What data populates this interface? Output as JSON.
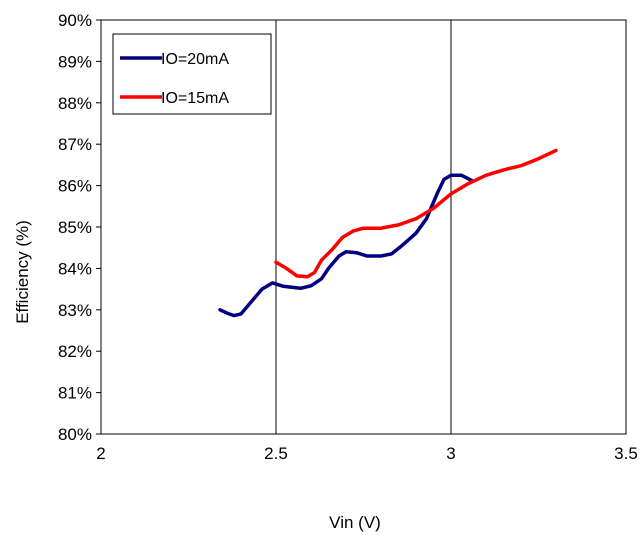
{
  "chart_data": {
    "type": "line",
    "xlabel": "Vin (V)",
    "ylabel": "Efficiency (%)",
    "xlim": [
      2,
      3.5
    ],
    "ylim": [
      80,
      90
    ],
    "x_ticks": [
      "2",
      "2.5",
      "3",
      "3.5"
    ],
    "y_ticks": [
      "80%",
      "81%",
      "82%",
      "83%",
      "84%",
      "85%",
      "86%",
      "87%",
      "88%",
      "89%",
      "90%"
    ],
    "grid": "vertical lines only",
    "legend_position": "top-left",
    "series": [
      {
        "name": "IO=20mA",
        "color": "#000080",
        "points": [
          [
            2.34,
            83.0
          ],
          [
            2.36,
            82.92
          ],
          [
            2.38,
            82.86
          ],
          [
            2.4,
            82.9
          ],
          [
            2.43,
            83.2
          ],
          [
            2.46,
            83.5
          ],
          [
            2.49,
            83.65
          ],
          [
            2.52,
            83.57
          ],
          [
            2.57,
            83.52
          ],
          [
            2.6,
            83.58
          ],
          [
            2.63,
            83.75
          ],
          [
            2.65,
            84.0
          ],
          [
            2.68,
            84.3
          ],
          [
            2.7,
            84.4
          ],
          [
            2.73,
            84.38
          ],
          [
            2.76,
            84.3
          ],
          [
            2.8,
            84.3
          ],
          [
            2.83,
            84.35
          ],
          [
            2.86,
            84.55
          ],
          [
            2.9,
            84.85
          ],
          [
            2.93,
            85.2
          ],
          [
            2.96,
            85.8
          ],
          [
            2.98,
            86.15
          ],
          [
            3.0,
            86.25
          ],
          [
            3.03,
            86.25
          ],
          [
            3.06,
            86.12
          ]
        ]
      },
      {
        "name": "IO=15mA",
        "color": "#ff0000",
        "points": [
          [
            2.5,
            84.15
          ],
          [
            2.53,
            84.0
          ],
          [
            2.56,
            83.82
          ],
          [
            2.59,
            83.8
          ],
          [
            2.61,
            83.9
          ],
          [
            2.63,
            84.2
          ],
          [
            2.66,
            84.45
          ],
          [
            2.69,
            84.75
          ],
          [
            2.72,
            84.9
          ],
          [
            2.75,
            84.97
          ],
          [
            2.8,
            84.97
          ],
          [
            2.85,
            85.05
          ],
          [
            2.9,
            85.2
          ],
          [
            2.95,
            85.45
          ],
          [
            3.0,
            85.8
          ],
          [
            3.05,
            86.05
          ],
          [
            3.1,
            86.25
          ],
          [
            3.15,
            86.38
          ],
          [
            3.2,
            86.48
          ],
          [
            3.25,
            86.65
          ],
          [
            3.3,
            86.85
          ]
        ]
      }
    ]
  }
}
